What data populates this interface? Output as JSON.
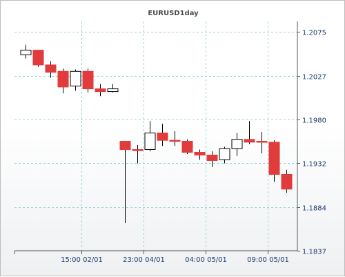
{
  "chart_data": {
    "type": "candlestick",
    "title": "EURUSD1day",
    "ylim": [
      1.1837,
      1.2075
    ],
    "yticks": [
      1.2075,
      1.2027,
      1.198,
      1.1932,
      1.1884,
      1.1837
    ],
    "ytick_labels": [
      "1.2075",
      "1.2027",
      "1.1980",
      "1.1932",
      "1.1884",
      "1.1837"
    ],
    "xtick_labels": [
      "15:00 02/01",
      "23:00 04/01",
      "04:00 05/01",
      "09:00 05/01"
    ],
    "grid": true,
    "colors": {
      "up_fill": "#ffffff",
      "down_fill": "#e23b3b",
      "outline": "#000000",
      "grid": "#9fd0d6"
    },
    "candles": [
      {
        "o": 1.205,
        "h": 1.2061,
        "l": 1.2046,
        "c": 1.2055
      },
      {
        "o": 1.2055,
        "h": 1.2055,
        "l": 1.2037,
        "c": 1.2039
      },
      {
        "o": 1.2039,
        "h": 1.2043,
        "l": 1.2025,
        "c": 1.2031
      },
      {
        "o": 1.2032,
        "h": 1.2035,
        "l": 1.2008,
        "c": 1.2015
      },
      {
        "o": 1.2016,
        "h": 1.2034,
        "l": 1.2011,
        "c": 1.2032
      },
      {
        "o": 1.2032,
        "h": 1.2035,
        "l": 1.2009,
        "c": 1.2013
      },
      {
        "o": 1.2013,
        "h": 1.2018,
        "l": 1.2005,
        "c": 1.201
      },
      {
        "o": 1.201,
        "h": 1.2018,
        "l": 1.2009,
        "c": 1.2013
      },
      {
        "o": 1.1956,
        "h": 1.1956,
        "l": 1.1867,
        "c": 1.1947
      },
      {
        "o": 1.1947,
        "h": 1.1952,
        "l": 1.1932,
        "c": 1.1946
      },
      {
        "o": 1.1947,
        "h": 1.1978,
        "l": 1.1945,
        "c": 1.1965
      },
      {
        "o": 1.1965,
        "h": 1.1975,
        "l": 1.1951,
        "c": 1.1957
      },
      {
        "o": 1.1957,
        "h": 1.1967,
        "l": 1.1951,
        "c": 1.1956
      },
      {
        "o": 1.1956,
        "h": 1.1958,
        "l": 1.1942,
        "c": 1.1944
      },
      {
        "o": 1.1944,
        "h": 1.1947,
        "l": 1.1936,
        "c": 1.1941
      },
      {
        "o": 1.1941,
        "h": 1.1945,
        "l": 1.1928,
        "c": 1.1935
      },
      {
        "o": 1.1936,
        "h": 1.195,
        "l": 1.1932,
        "c": 1.1948
      },
      {
        "o": 1.1948,
        "h": 1.1965,
        "l": 1.194,
        "c": 1.1958
      },
      {
        "o": 1.1958,
        "h": 1.1978,
        "l": 1.1953,
        "c": 1.1955
      },
      {
        "o": 1.1956,
        "h": 1.1966,
        "l": 1.1943,
        "c": 1.1955
      },
      {
        "o": 1.1955,
        "h": 1.1957,
        "l": 1.1912,
        "c": 1.192
      },
      {
        "o": 1.192,
        "h": 1.1925,
        "l": 1.19,
        "c": 1.1904
      }
    ]
  }
}
